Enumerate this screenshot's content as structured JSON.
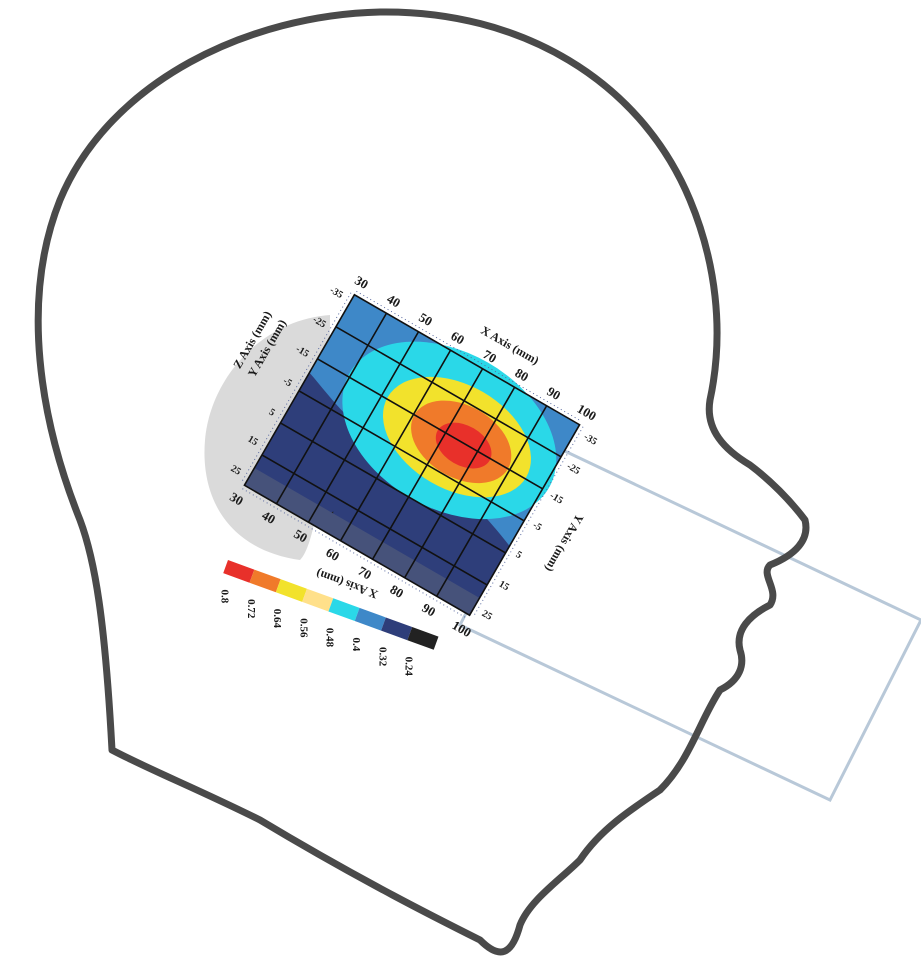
{
  "colors": {
    "head_outline": "#4a4a4a",
    "phone_outline": "#b8c8d8",
    "scale": [
      "#e8302a",
      "#f07a2a",
      "#f2e22c",
      "#ffe08a",
      "#2ad8e8",
      "#3e88c8",
      "#2e3e7a",
      "#222222"
    ]
  },
  "heatmap": {
    "x_axis_top_label": "X Axis (mm)",
    "x_axis_bottom_label": "X Axis (mm)",
    "y_axis_left_label": "Y Axis (mm)",
    "y_axis_right_label": "Y Axis (mm)",
    "z_axis_label": "Z Axis (mm)",
    "top_ticks": [
      "30",
      "40",
      "50",
      "60",
      "70",
      "80",
      "90",
      "100"
    ],
    "bottom_ticks": [
      "30",
      "40",
      "50",
      "60",
      "70",
      "80",
      "90",
      "100"
    ],
    "left_ticks": [
      "-35",
      "-25",
      "-15",
      "-5",
      "5",
      "15",
      "25"
    ],
    "right_ticks": [
      "-35",
      "-25",
      "-15",
      "-5",
      "5",
      "15",
      "25"
    ],
    "legend_values": [
      "0.8",
      "0.72",
      "0.64",
      "0.56",
      "0.48",
      "0.4",
      "0.32",
      "0.24"
    ]
  }
}
